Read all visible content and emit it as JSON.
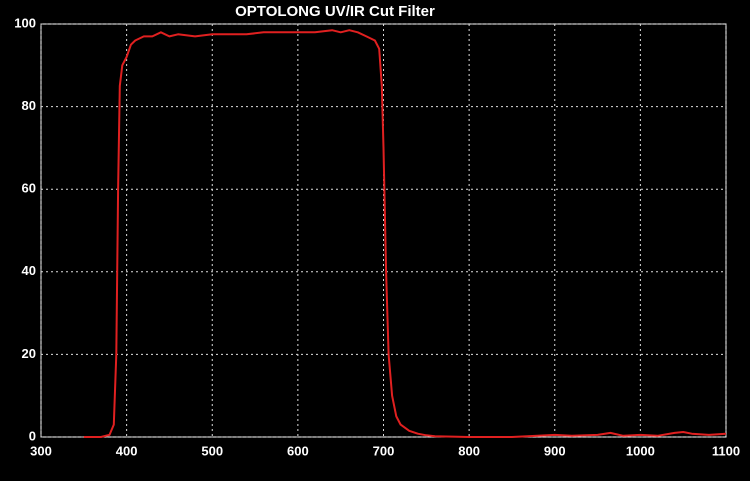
{
  "chart_data": {
    "type": "line",
    "title": "OPTOLONG UV/IR Cut Filter",
    "x": [
      350,
      370,
      380,
      385,
      388,
      390,
      392,
      395,
      400,
      405,
      410,
      420,
      430,
      440,
      450,
      460,
      480,
      500,
      520,
      540,
      560,
      580,
      600,
      620,
      640,
      650,
      660,
      670,
      680,
      690,
      695,
      698,
      700,
      703,
      706,
      710,
      715,
      720,
      730,
      740,
      750,
      760,
      800,
      850,
      880,
      900,
      920,
      950,
      965,
      980,
      1000,
      1020,
      1040,
      1050,
      1060,
      1080,
      1100
    ],
    "values": [
      0,
      0,
      0.5,
      3,
      20,
      60,
      85,
      90,
      92,
      95,
      96,
      97,
      97,
      98,
      97,
      97.5,
      97,
      97.5,
      97.5,
      97.5,
      98,
      98,
      98,
      98,
      98.5,
      98,
      98.5,
      98,
      97,
      96,
      94,
      85,
      70,
      40,
      20,
      10,
      5,
      3,
      1.5,
      0.8,
      0.4,
      0.2,
      0,
      0,
      0.3,
      0.5,
      0.3,
      0.5,
      1,
      0.3,
      0.5,
      0.3,
      1,
      1.2,
      0.8,
      0.5,
      0.8
    ],
    "color": "#e02020",
    "xlim": [
      300,
      1100
    ],
    "xticks": [
      300,
      400,
      500,
      600,
      700,
      800,
      900,
      1000,
      1100
    ],
    "ylim": [
      0,
      100
    ],
    "yticks": [
      0,
      20,
      40,
      60,
      80,
      100
    ],
    "grid": true
  }
}
